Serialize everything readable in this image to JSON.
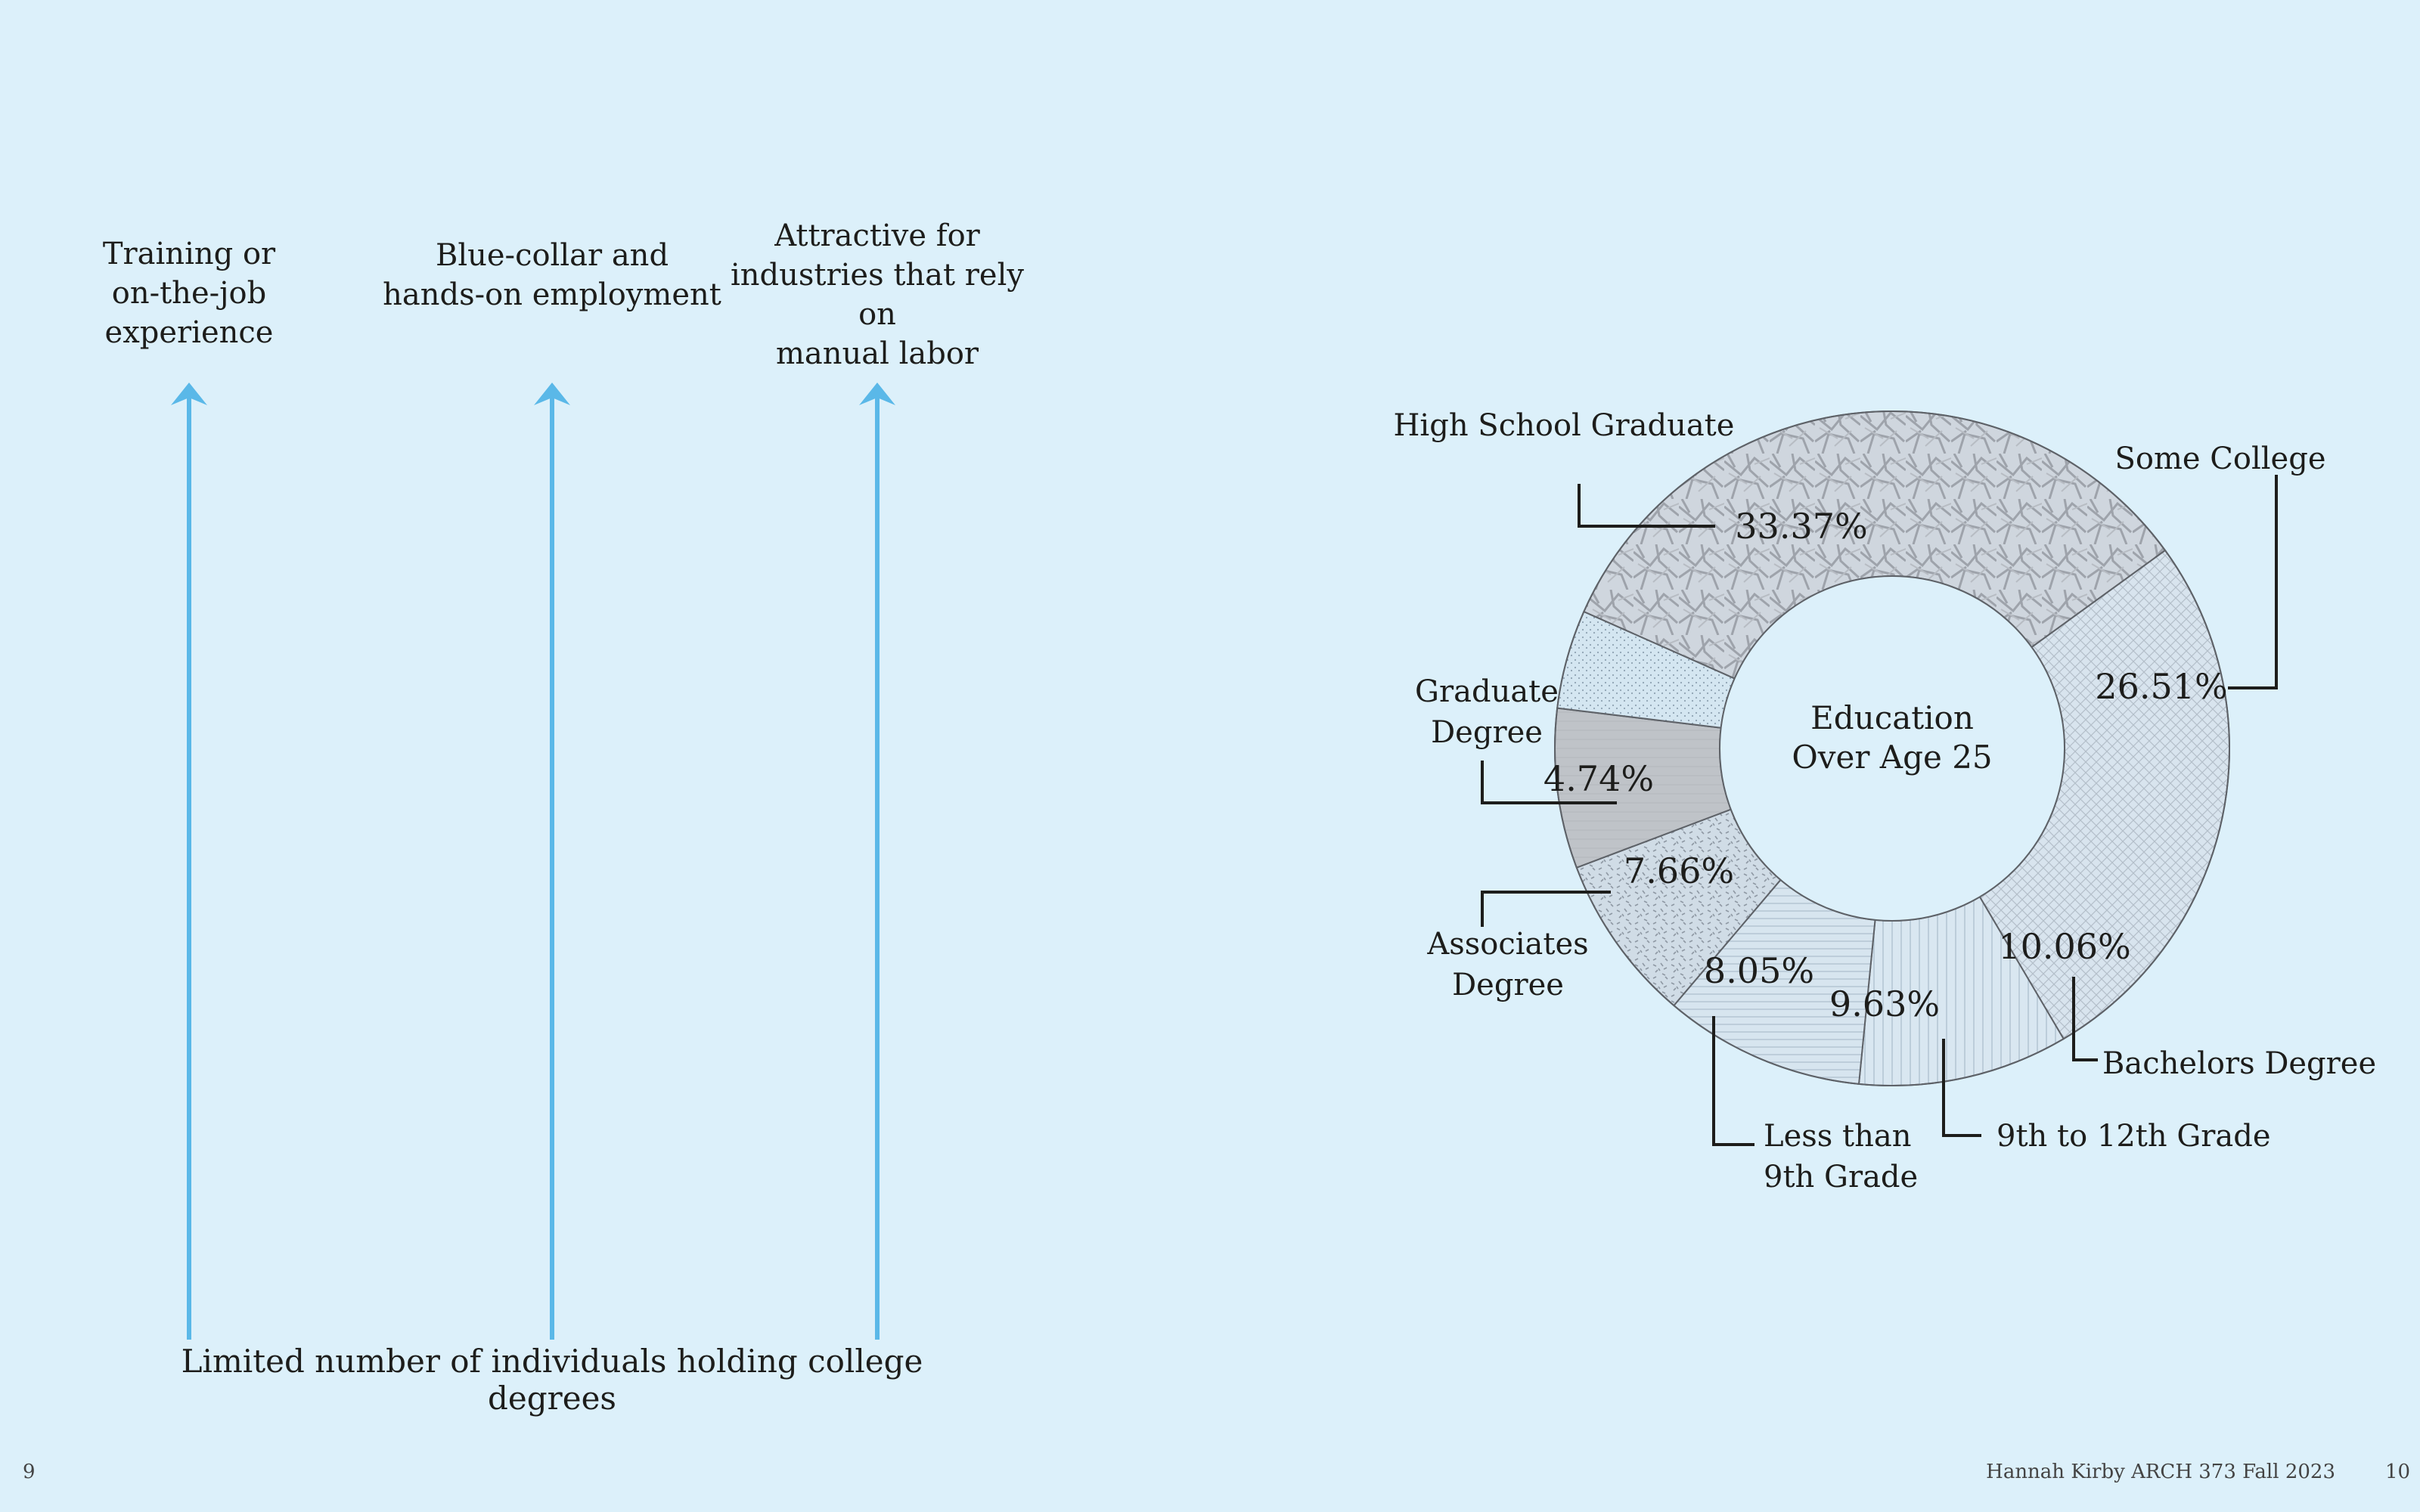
{
  "left_page": {
    "captions": [
      "Training or\non-the-job experience",
      "Blue-collar and\nhands-on employment",
      "Attractive for\nindustries that rely on\nmanual labor"
    ],
    "bottom_note": "Limited number of individuals holding college degrees",
    "arrow_color": "#5ab8e8"
  },
  "footer": {
    "left_page_number": "9",
    "right_page_number": "10",
    "credit": "Hannah Kirby ARCH 373 Fall 2023"
  },
  "chart_data": {
    "type": "pie",
    "variant": "donut",
    "center_label": [
      "Education",
      "Over Age 25"
    ],
    "start_clockwise_from": "High School Graduate",
    "slices": [
      {
        "label": "High School Graduate",
        "value": 33.37,
        "display": "33.37%",
        "pattern": "crackle",
        "color": "#b8bcc4"
      },
      {
        "label": "Some College",
        "value": 26.51,
        "display": "26.51%",
        "pattern": "crosshatch",
        "color": "#cfd8e2"
      },
      {
        "label": "Bachelors Degree",
        "value": 10.06,
        "display": "10.06%",
        "pattern": "vertical-lines",
        "color": "#d6e4ee"
      },
      {
        "label": "9th to 12th Grade",
        "value": 9.63,
        "display": "9.63%",
        "pattern": "horizontal-lines",
        "color": "#d3e1ec"
      },
      {
        "label": "Less than 9th Grade",
        "value": 8.05,
        "display": "8.05%",
        "pattern": "speckle",
        "color": "#c5d3de"
      },
      {
        "label": "Associates Degree",
        "value": 7.66,
        "display": "7.66%",
        "pattern": "solid-lines",
        "color": "#bfc3c8"
      },
      {
        "label": "Graduate Degree",
        "value": 4.74,
        "display": "4.74%",
        "pattern": "dots",
        "color": "#d0e2ee"
      }
    ],
    "category_labels": [
      [
        "High School Graduate"
      ],
      [
        "Some College"
      ],
      [
        "Bachelors Degree"
      ],
      [
        "9th to 12th Grade"
      ],
      [
        "Less than",
        "9th Grade"
      ],
      [
        "Associates",
        "Degree"
      ],
      [
        "Graduate",
        "Degree"
      ]
    ]
  }
}
